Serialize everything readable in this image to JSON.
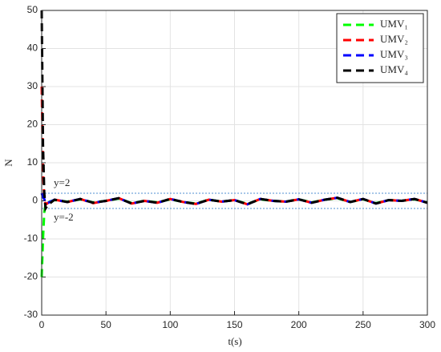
{
  "chart_data": {
    "type": "line",
    "xlabel": "t(s)",
    "ylabel": "N",
    "x": [
      0,
      1,
      2,
      3,
      5,
      10,
      20,
      30,
      40,
      50,
      60,
      70,
      80,
      90,
      100,
      110,
      120,
      130,
      140,
      150,
      160,
      170,
      180,
      190,
      200,
      210,
      220,
      230,
      240,
      250,
      260,
      270,
      280,
      290,
      300
    ],
    "series": [
      {
        "name": "UMV₁",
        "color": "#00ff00",
        "values": [
          -20,
          -10,
          -3,
          -1,
          -0.3,
          0.2,
          -0.2,
          0.4,
          -0.4,
          0,
          0.6,
          -0.6,
          0,
          -0.4,
          0.4,
          -0.3,
          -0.7,
          0.3,
          -0.2,
          0.2,
          -0.8,
          0.4,
          0,
          -0.2,
          0.4,
          -0.4,
          0.3,
          0.7,
          -0.3,
          0.4,
          -0.6,
          0.2,
          0,
          0.4,
          -0.4
        ]
      },
      {
        "name": "UMV₂",
        "color": "#ff0000",
        "values": [
          30,
          8,
          1,
          -1,
          -0.5,
          0.3,
          -0.3,
          0.5,
          -0.6,
          0,
          0.7,
          -0.7,
          0,
          -0.5,
          0.5,
          -0.3,
          -0.8,
          0.3,
          -0.2,
          0.2,
          -0.9,
          0.5,
          0,
          -0.2,
          0.4,
          -0.5,
          0.3,
          0.8,
          -0.3,
          0.5,
          -0.7,
          0.2,
          0,
          0.5,
          -0.5
        ]
      },
      {
        "name": "UMV₃",
        "color": "#0000ff",
        "values": [
          2,
          1,
          0.5,
          -0.5,
          -0.5,
          0.3,
          -0.3,
          0.5,
          -0.5,
          0,
          0.7,
          -0.7,
          0,
          -0.5,
          0.5,
          -0.3,
          -0.8,
          0.3,
          -0.2,
          0.2,
          -0.9,
          0.5,
          0,
          -0.2,
          0.4,
          -0.5,
          0.3,
          0.8,
          -0.3,
          0.5,
          -0.7,
          0.2,
          0,
          0.5,
          -0.5
        ]
      },
      {
        "name": "UMV₄",
        "color": "#000000",
        "values": [
          50,
          15,
          2,
          -2,
          -1,
          0.3,
          -0.3,
          0.5,
          -0.5,
          0,
          0.7,
          -0.7,
          0,
          -0.5,
          0.5,
          -0.3,
          -0.8,
          0.3,
          -0.2,
          0.2,
          -0.9,
          0.5,
          0,
          -0.2,
          0.4,
          -0.5,
          0.3,
          0.8,
          -0.3,
          0.5,
          -0.7,
          0.2,
          0,
          0.5,
          -0.5
        ]
      }
    ],
    "reference_lines": [
      {
        "value": 2,
        "label": "y=2"
      },
      {
        "value": -2,
        "label": "y=-2"
      }
    ],
    "xlim": [
      0,
      300
    ],
    "xticks": [
      0,
      50,
      100,
      150,
      200,
      250,
      300
    ],
    "ylim": [
      -30,
      50
    ],
    "yticks": [
      -30,
      -20,
      -10,
      0,
      10,
      20,
      30,
      40,
      50
    ],
    "grid": true,
    "legend": "upper right"
  }
}
